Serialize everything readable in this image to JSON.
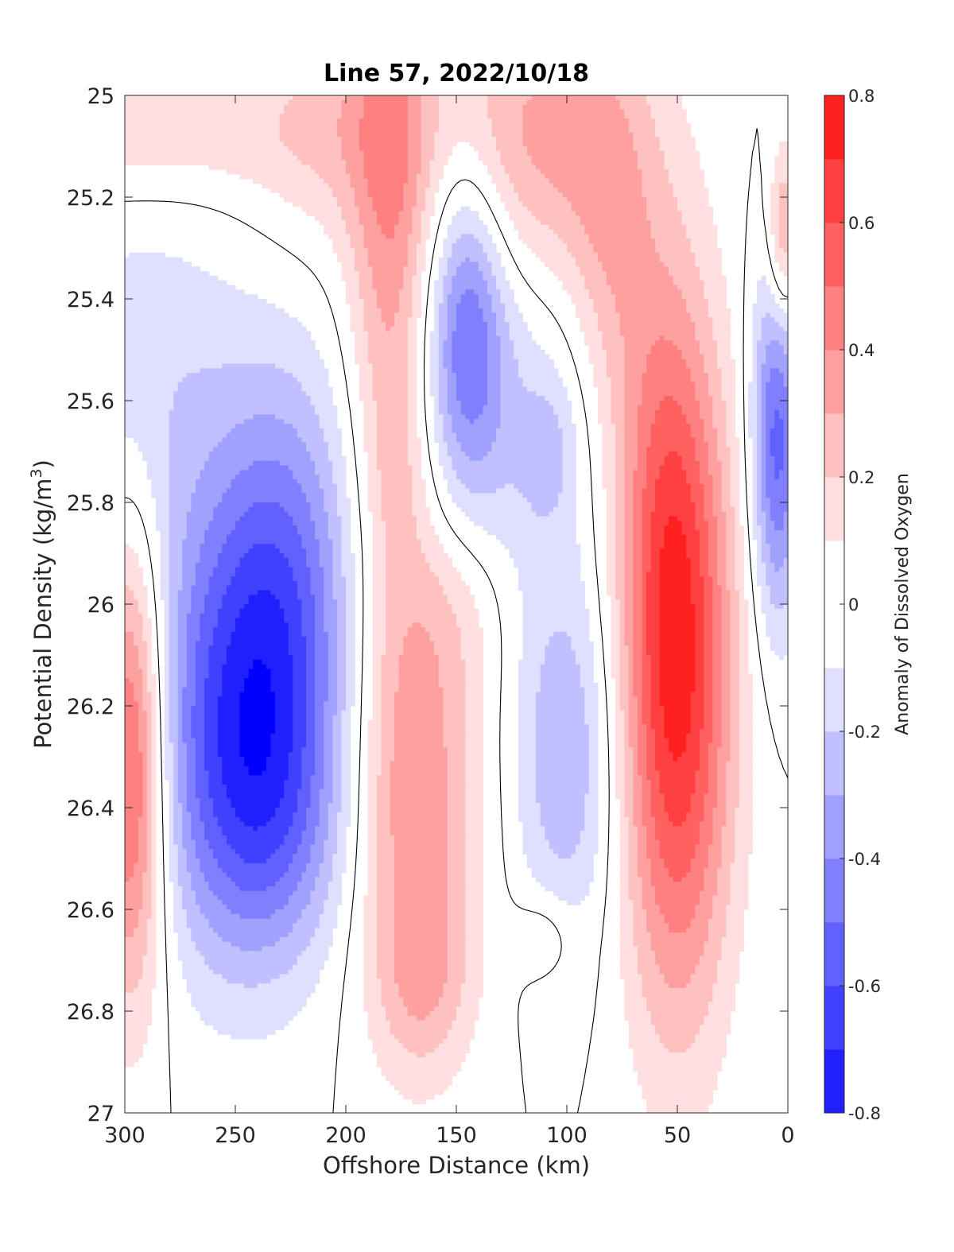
{
  "chart_data": {
    "type": "heatmap",
    "subtype": "filled-contour",
    "title": "Line 57, 2022/10/18",
    "xlabel": "Offshore Distance (km)",
    "ylabel_main": "Potential Density (kg/m",
    "ylabel_sup": "3",
    "ylabel_close": ")",
    "xlim": [
      300,
      0
    ],
    "x_reversed": true,
    "ylim": [
      25,
      27
    ],
    "y_reversed": true,
    "xticks": [
      300,
      250,
      200,
      150,
      100,
      50,
      0
    ],
    "xtick_labels": [
      "300",
      "250",
      "200",
      "150",
      "100",
      "50",
      "0"
    ],
    "yticks": [
      25,
      25.2,
      25.4,
      25.6,
      25.8,
      26,
      26.2,
      26.4,
      26.6,
      26.8,
      27
    ],
    "ytick_labels": [
      "25",
      "25.2",
      "25.4",
      "25.6",
      "25.8",
      "26",
      "26.2",
      "26.4",
      "26.6",
      "26.8",
      "27"
    ],
    "colorbar": {
      "label": "Anomaly of Dissolved Oxygen",
      "range": [
        -0.8,
        0.8
      ],
      "ticks": [
        -0.8,
        -0.6,
        -0.4,
        -0.2,
        0,
        0.2,
        0.4,
        0.6,
        0.8
      ],
      "tick_labels": [
        "-0.8",
        "-0.6",
        "-0.4",
        "-0.2",
        "0",
        "0.2",
        "0.4",
        "0.6",
        "0.8"
      ],
      "levels": [
        -0.8,
        -0.7,
        -0.6,
        -0.5,
        -0.4,
        -0.3,
        -0.2,
        -0.1,
        0.1,
        0.2,
        0.3,
        0.4,
        0.5,
        0.6,
        0.7,
        0.8
      ],
      "colors": [
        "#0000ff",
        "#2020ff",
        "#4040ff",
        "#6060ff",
        "#8080ff",
        "#a0a0ff",
        "#c0c0ff",
        "#dfdfff",
        "#ffffff",
        "#ffdfdf",
        "#ffc0c0",
        "#ffa0a0",
        "#ff8080",
        "#ff6060",
        "#ff4040",
        "#ff2020",
        "#ff0000"
      ]
    },
    "features": [
      {
        "x": 300,
        "y": 25.08,
        "sx": 55,
        "sy": 0.09,
        "v": 0.18
      },
      {
        "x": 205,
        "y": 25.05,
        "sx": 28,
        "sy": 0.18,
        "v": 0.2
      },
      {
        "x": 180,
        "y": 25.3,
        "sx": 13,
        "sy": 0.5,
        "v": 0.34
      },
      {
        "x": 176,
        "y": 25.75,
        "sx": 9,
        "sy": 0.1,
        "v": 0.06
      },
      {
        "x": 112,
        "y": 25.08,
        "sx": 32,
        "sy": 0.2,
        "v": 0.33
      },
      {
        "x": 80,
        "y": 25.3,
        "sx": 14,
        "sy": 0.28,
        "v": 0.2
      },
      {
        "x": 2,
        "y": 25.28,
        "sx": 5,
        "sy": 0.13,
        "v": 0.38
      },
      {
        "x": 295,
        "y": 25.55,
        "sx": 38,
        "sy": 0.25,
        "v": -0.17
      },
      {
        "x": 145,
        "y": 25.45,
        "sx": 12,
        "sy": 0.22,
        "v": -0.42
      },
      {
        "x": 125,
        "y": 25.65,
        "sx": 30,
        "sy": 0.25,
        "v": -0.17
      },
      {
        "x": 108,
        "y": 25.7,
        "sx": 9,
        "sy": 0.1,
        "v": -0.12
      },
      {
        "x": 248,
        "y": 26.22,
        "sx": 28,
        "sy": 0.32,
        "v": -0.62
      },
      {
        "x": 225,
        "y": 25.95,
        "sx": 22,
        "sy": 0.3,
        "v": -0.3
      },
      {
        "x": 232,
        "y": 26.45,
        "sx": 25,
        "sy": 0.18,
        "v": -0.18
      },
      {
        "x": 297,
        "y": 26.32,
        "sx": 11,
        "sy": 0.32,
        "v": 0.62
      },
      {
        "x": 168,
        "y": 26.4,
        "sx": 20,
        "sy": 0.32,
        "v": 0.38
      },
      {
        "x": 165,
        "y": 26.75,
        "sx": 15,
        "sy": 0.12,
        "v": 0.16
      },
      {
        "x": 150,
        "y": 26.0,
        "sx": 17,
        "sy": 0.14,
        "v": 0.12
      },
      {
        "x": 100,
        "y": 26.3,
        "sx": 17,
        "sy": 0.25,
        "v": -0.3
      },
      {
        "x": 110,
        "y": 26.65,
        "sx": 10,
        "sy": 0.06,
        "v": 0.13
      },
      {
        "x": 50,
        "y": 26.18,
        "sx": 18,
        "sy": 0.45,
        "v": 0.68
      },
      {
        "x": 55,
        "y": 25.72,
        "sx": 16,
        "sy": 0.35,
        "v": 0.22
      },
      {
        "x": 5,
        "y": 25.68,
        "sx": 8,
        "sy": 0.25,
        "v": -0.55
      }
    ]
  }
}
